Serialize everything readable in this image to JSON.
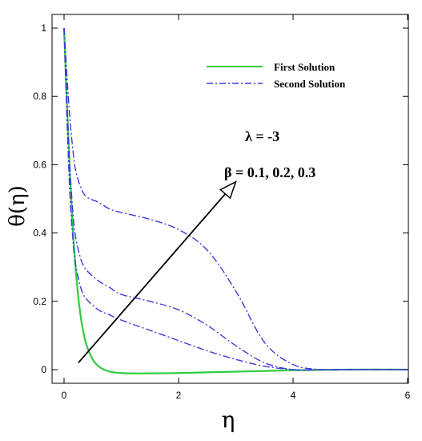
{
  "chart_data": {
    "type": "line",
    "xlabel": "η",
    "ylabel": "θ(η)",
    "xlim": [
      0,
      6
    ],
    "ylim": [
      -0.04,
      1.04
    ],
    "x_ticks": [
      "0",
      "2",
      "4",
      "6"
    ],
    "y_ticks": [
      "0",
      "0.2",
      "0.4",
      "0.6",
      "0.8",
      "1"
    ],
    "grid": false,
    "legend_position": "top-right",
    "annotations": {
      "lambda": "λ = -3",
      "beta": "β = 0.1, 0.2, 0.3"
    },
    "colors": {
      "first": "#2ecc40",
      "second": "#3b3bd6",
      "arrow": "#000000"
    },
    "series": [
      {
        "name": "First Solution",
        "style": "solid",
        "x": [
          0,
          0.05,
          0.1,
          0.15,
          0.2,
          0.25,
          0.3,
          0.35,
          0.4,
          0.5,
          0.6,
          0.7,
          0.8,
          1.0,
          1.2,
          1.5,
          2.0,
          2.5,
          3.0,
          3.5,
          4.0,
          5.0,
          6.0
        ],
        "y": [
          1.0,
          0.78,
          0.58,
          0.42,
          0.3,
          0.21,
          0.145,
          0.1,
          0.068,
          0.03,
          0.01,
          0.0,
          -0.006,
          -0.01,
          -0.011,
          -0.011,
          -0.01,
          -0.008,
          -0.006,
          -0.004,
          -0.002,
          0.0,
          0.0
        ]
      },
      {
        "name": "Second Solution",
        "style": "dashdot",
        "x": [
          0,
          0.05,
          0.1,
          0.15,
          0.2,
          0.3,
          0.4,
          0.6,
          0.8,
          1.0,
          1.5,
          2.0,
          2.5,
          3.0,
          3.5,
          4.0,
          4.5,
          5.0,
          6.0
        ],
        "y": [
          1.0,
          0.74,
          0.52,
          0.39,
          0.31,
          0.235,
          0.205,
          0.175,
          0.16,
          0.145,
          0.115,
          0.085,
          0.055,
          0.03,
          0.01,
          0.0,
          0.0,
          0.0,
          0.0
        ]
      },
      {
        "name": "Second Solution",
        "style": "dashdot",
        "x": [
          0,
          0.05,
          0.1,
          0.15,
          0.2,
          0.3,
          0.4,
          0.6,
          0.8,
          1.0,
          1.5,
          2.0,
          2.5,
          3.0,
          3.5,
          4.0,
          4.5,
          5.0,
          6.0
        ],
        "y": [
          1.0,
          0.78,
          0.6,
          0.47,
          0.39,
          0.32,
          0.29,
          0.26,
          0.24,
          0.22,
          0.2,
          0.175,
          0.13,
          0.07,
          0.02,
          0.0,
          0.0,
          0.0,
          0.0
        ]
      },
      {
        "name": "Second Solution",
        "style": "dashdot",
        "x": [
          0,
          0.05,
          0.1,
          0.15,
          0.2,
          0.3,
          0.4,
          0.6,
          0.8,
          1.0,
          1.5,
          2.0,
          2.5,
          3.0,
          3.5,
          4.0,
          4.5,
          5.0,
          6.0
        ],
        "y": [
          1.0,
          0.86,
          0.74,
          0.65,
          0.585,
          0.53,
          0.505,
          0.49,
          0.47,
          0.46,
          0.44,
          0.41,
          0.35,
          0.23,
          0.08,
          0.015,
          0.0,
          0.0,
          0.0
        ]
      }
    ],
    "arrow": {
      "from": [
        0.25,
        0.02
      ],
      "to": [
        3.0,
        0.55
      ]
    }
  }
}
